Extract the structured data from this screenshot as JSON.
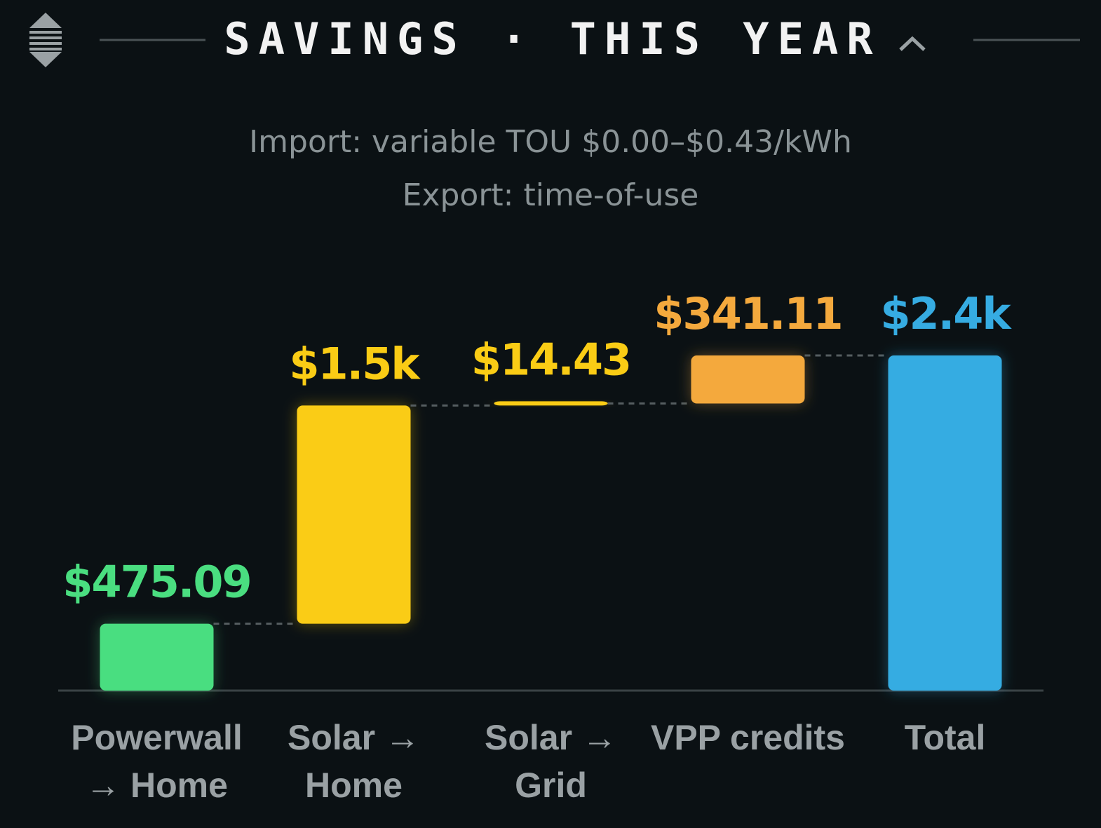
{
  "chart_data": {
    "type": "waterfall",
    "title": "SAVINGS · THIS YEAR",
    "subtitle": [
      "Import: variable TOU $0.00–$0.43/kWh",
      "Export: time-of-use"
    ],
    "categories": [
      "Powerwall → Home",
      "Solar → Home",
      "Solar → Grid",
      "VPP credits",
      "Total"
    ],
    "values": [
      475.09,
      1549,
      14.43,
      341.11,
      2379.63
    ],
    "value_labels": [
      "$475.09",
      "$1.5k",
      "$14.43",
      "$341.11",
      "$2.4k"
    ],
    "colors": [
      "#4ade80",
      "#facc15",
      "#facc15",
      "#f4a93d",
      "#36ace2"
    ],
    "last_is_total": true
  }
}
